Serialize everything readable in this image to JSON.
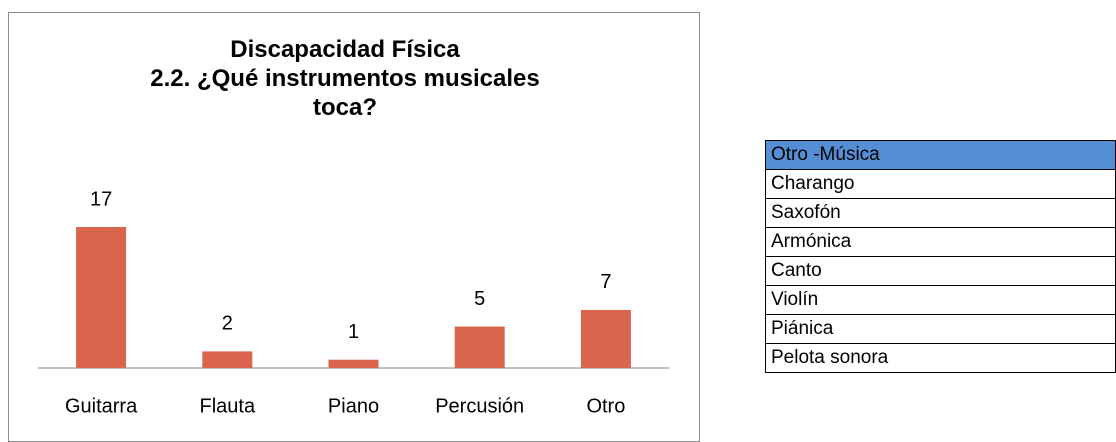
{
  "chart_data": {
    "type": "bar",
    "title": "Discapacidad Física",
    "subtitle": "2.2. ¿Qué instrumentos musicales toca?",
    "categories": [
      "Guitarra",
      "Flauta",
      "Piano",
      "Percusión",
      "Otro"
    ],
    "values": [
      17,
      2,
      1,
      5,
      7
    ],
    "color": "#d8654c"
  },
  "table": {
    "header": "Otro -Música",
    "rows": [
      "Charango",
      "Saxofón",
      "Armónica",
      "Canto",
      "Violín",
      "Piánica",
      "Pelota sonora"
    ]
  }
}
